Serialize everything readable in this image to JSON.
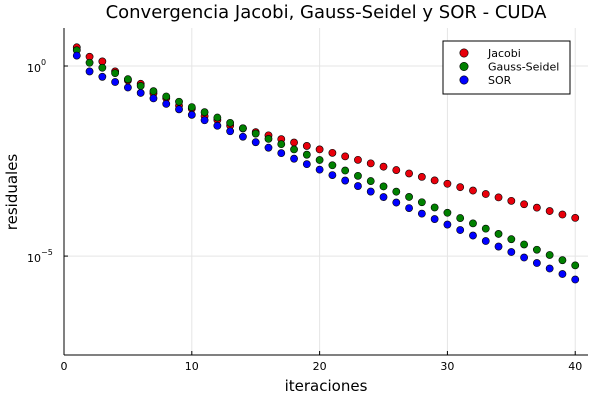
{
  "chart_data": {
    "type": "scatter",
    "title": "Convergencia Jacobi, Gauss-Seidel y SOR - CUDA",
    "xlabel": "iteraciones",
    "ylabel": "residuales",
    "xlim": [
      0,
      41
    ],
    "ylim": [
      2.5e-08,
      10
    ],
    "yscale": "log",
    "grid": true,
    "legend_position": "top-right",
    "x_ticks": [
      {
        "value": 0,
        "label": "0"
      },
      {
        "value": 10,
        "label": "10"
      },
      {
        "value": 20,
        "label": "20"
      },
      {
        "value": 30,
        "label": "30"
      },
      {
        "value": 40,
        "label": "40"
      }
    ],
    "y_ticks": [
      {
        "value": 1,
        "base": "10",
        "exp": "0"
      },
      {
        "value": 1e-05,
        "base": "10",
        "exp": "−5"
      }
    ],
    "series": [
      {
        "name": "Jacobi",
        "color": "#e8000b",
        "x": [
          1,
          2,
          3,
          4,
          5,
          6,
          7,
          8,
          9,
          10,
          11,
          12,
          13,
          14,
          15,
          16,
          17,
          18,
          19,
          20,
          21,
          22,
          23,
          24,
          25,
          26,
          27,
          28,
          29,
          30,
          31,
          32,
          33,
          34,
          35,
          36,
          37,
          38,
          39,
          40
        ],
        "y": [
          3.1,
          1.75,
          1.32,
          0.72,
          0.42,
          0.34,
          0.19,
          0.142,
          0.091,
          0.075,
          0.048,
          0.038,
          0.0272,
          0.0228,
          0.0182,
          0.015,
          0.0119,
          0.0097,
          0.0079,
          0.0064,
          0.0052,
          0.0042,
          0.0034,
          0.00275,
          0.00225,
          0.00183,
          0.00149,
          0.00121,
          0.00098,
          0.0008,
          0.00065,
          0.00053,
          0.00043,
          0.00035,
          0.000284,
          0.000231,
          0.000188,
          0.000153,
          0.000124,
          0.000101
        ]
      },
      {
        "name": "Gauss-Seidel",
        "color": "#008000",
        "x": [
          1,
          2,
          3,
          4,
          5,
          6,
          7,
          8,
          9,
          10,
          11,
          12,
          13,
          14,
          15,
          16,
          17,
          18,
          19,
          20,
          21,
          22,
          23,
          24,
          25,
          26,
          27,
          28,
          29,
          30,
          31,
          32,
          33,
          34,
          35,
          36,
          37,
          38,
          39,
          40
        ],
        "y": [
          2.6,
          1.22,
          0.9,
          0.65,
          0.45,
          0.3,
          0.218,
          0.158,
          0.115,
          0.083,
          0.061,
          0.044,
          0.032,
          0.023,
          0.0167,
          0.0121,
          0.0088,
          0.0064,
          0.00465,
          0.00337,
          0.00245,
          0.00178,
          0.00129,
          0.00094,
          0.00068,
          0.000495,
          0.00036,
          0.000261,
          0.00019,
          0.000138,
          0.0001,
          7.26e-05,
          5.27e-05,
          3.83e-05,
          2.78e-05,
          2.02e-05,
          1.47e-05,
          1.07e-05,
          7.8e-06,
          5.7e-06
        ]
      },
      {
        "name": "SOR",
        "color": "#0000ff",
        "x": [
          1,
          2,
          3,
          4,
          5,
          6,
          7,
          8,
          9,
          10,
          11,
          12,
          13,
          14,
          15,
          16,
          17,
          18,
          19,
          20,
          21,
          22,
          23,
          24,
          25,
          26,
          27,
          28,
          29,
          30,
          31,
          32,
          33,
          34,
          35,
          36,
          37,
          38,
          39,
          40
        ],
        "y": [
          1.88,
          0.72,
          0.52,
          0.38,
          0.272,
          0.196,
          0.141,
          0.101,
          0.0725,
          0.052,
          0.0374,
          0.0268,
          0.0192,
          0.0138,
          0.0099,
          0.0071,
          0.0051,
          0.00365,
          0.00262,
          0.00188,
          0.00135,
          0.00097,
          0.000695,
          0.000498,
          0.000357,
          0.000256,
          0.000183,
          0.000131,
          9.42e-05,
          6.75e-05,
          4.84e-05,
          3.47e-05,
          2.49e-05,
          1.78e-05,
          1.28e-05,
          9.17e-06,
          6.57e-06,
          4.71e-06,
          3.38e-06,
          2.42e-06
        ]
      }
    ]
  }
}
